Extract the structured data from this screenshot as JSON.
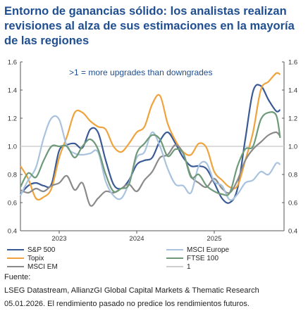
{
  "title": "Entorno de ganancias sólido: los analistas realizan revisiones al alza de sus estimaciones en la mayoría de las regiones",
  "annotation": ">1 = more upgrades than downgrades",
  "footer": {
    "line1": "Fuente:",
    "line2": "LSEG Datastream, AllianzGI Global Capital Markets & Thematic Research",
    "line3": "05.01.2026. El rendimiento pasado no predice los rendimientos futuros."
  },
  "chart_data": {
    "type": "line",
    "title": "",
    "xlabel": "",
    "ylabel": "",
    "ylim": [
      0.4,
      1.6
    ],
    "y_ticks": [
      "0.4",
      "0.6",
      "0.8",
      "1.0",
      "1.2",
      "1.4",
      "1.6"
    ],
    "y_ticks_right": [
      "0.4",
      "0.6",
      "0.8",
      "1.0",
      "1.2",
      "1.4",
      "1.6"
    ],
    "x_tick_labels": [
      "2023",
      "2024",
      "2025"
    ],
    "x_tick_positions": [
      2023.0,
      2024.0,
      2025.0
    ],
    "xlim": [
      2022.5,
      2025.9
    ],
    "grid": false,
    "legend_placement": "bottom",
    "series": [
      {
        "name": "S&P 500",
        "color": "#3a5a95",
        "x": [
          2022.5,
          2022.6,
          2022.7,
          2022.8,
          2022.9,
          2023.0,
          2023.1,
          2023.2,
          2023.3,
          2023.4,
          2023.5,
          2023.6,
          2023.7,
          2023.8,
          2023.9,
          2024.0,
          2024.1,
          2024.2,
          2024.3,
          2024.4,
          2024.5,
          2024.6,
          2024.7,
          2024.8,
          2024.9,
          2025.0,
          2025.1,
          2025.2,
          2025.3,
          2025.4,
          2025.5,
          2025.6,
          2025.7,
          2025.8,
          2025.85
        ],
        "values": [
          0.66,
          0.72,
          0.74,
          0.72,
          0.73,
          0.97,
          1.01,
          1.02,
          0.99,
          1.12,
          1.1,
          0.9,
          0.73,
          0.7,
          0.76,
          0.87,
          0.9,
          0.92,
          1.04,
          1.1,
          1.02,
          0.92,
          0.86,
          0.86,
          0.84,
          0.74,
          0.63,
          0.6,
          0.7,
          1.05,
          1.39,
          1.43,
          1.33,
          1.25,
          1.26
        ]
      },
      {
        "name": "Topix",
        "color": "#f0a33c",
        "x": [
          2022.5,
          2022.6,
          2022.7,
          2022.8,
          2022.9,
          2023.0,
          2023.1,
          2023.2,
          2023.3,
          2023.4,
          2023.5,
          2023.6,
          2023.7,
          2023.8,
          2023.9,
          2024.0,
          2024.1,
          2024.2,
          2024.3,
          2024.4,
          2024.5,
          2024.6,
          2024.7,
          2024.8,
          2024.9,
          2025.0,
          2025.1,
          2025.2,
          2025.3,
          2025.4,
          2025.5,
          2025.6,
          2025.7,
          2025.8,
          2025.85
        ],
        "values": [
          0.86,
          0.77,
          0.63,
          0.64,
          0.7,
          0.92,
          1.07,
          1.24,
          1.24,
          1.18,
          1.14,
          1.12,
          1.0,
          0.96,
          1.02,
          1.1,
          1.14,
          1.3,
          1.36,
          1.16,
          1.04,
          0.96,
          0.94,
          1.02,
          0.99,
          0.82,
          0.76,
          0.71,
          0.72,
          0.9,
          1.1,
          1.4,
          1.46,
          1.52,
          1.51
        ]
      },
      {
        "name": "MSCI EM",
        "color": "#8a8a8a",
        "x": [
          2022.5,
          2022.6,
          2022.7,
          2022.8,
          2022.9,
          2023.0,
          2023.1,
          2023.2,
          2023.3,
          2023.4,
          2023.5,
          2023.6,
          2023.7,
          2023.8,
          2023.9,
          2024.0,
          2024.1,
          2024.2,
          2024.3,
          2024.4,
          2024.5,
          2024.6,
          2024.7,
          2024.8,
          2024.9,
          2025.0,
          2025.1,
          2025.2,
          2025.3,
          2025.4,
          2025.5,
          2025.6,
          2025.7,
          2025.8,
          2025.85
        ],
        "values": [
          0.69,
          0.67,
          0.7,
          0.68,
          0.72,
          0.74,
          0.79,
          0.69,
          0.74,
          0.58,
          0.63,
          0.68,
          0.67,
          0.7,
          0.73,
          0.68,
          0.76,
          0.82,
          0.92,
          0.94,
          1.01,
          0.95,
          0.79,
          0.74,
          0.71,
          0.77,
          0.7,
          0.67,
          0.76,
          0.9,
          0.98,
          1.03,
          1.08,
          1.1,
          1.07
        ]
      },
      {
        "name": "MSCI Europe",
        "color": "#a9c3df",
        "x": [
          2022.5,
          2022.6,
          2022.7,
          2022.8,
          2022.9,
          2023.0,
          2023.1,
          2023.2,
          2023.3,
          2023.4,
          2023.5,
          2023.6,
          2023.7,
          2023.8,
          2023.9,
          2024.0,
          2024.1,
          2024.2,
          2024.3,
          2024.4,
          2024.5,
          2024.6,
          2024.7,
          2024.8,
          2024.9,
          2025.0,
          2025.1,
          2025.2,
          2025.3,
          2025.4,
          2025.5,
          2025.6,
          2025.7,
          2025.8,
          2025.85
        ],
        "values": [
          0.65,
          0.76,
          0.85,
          1.06,
          1.2,
          1.19,
          1.0,
          0.95,
          0.94,
          0.95,
          0.96,
          0.75,
          0.65,
          0.63,
          0.74,
          0.92,
          0.96,
          1.1,
          1.0,
          0.84,
          0.73,
          0.72,
          0.67,
          0.86,
          0.88,
          0.75,
          0.72,
          0.62,
          0.66,
          0.74,
          0.76,
          0.82,
          0.8,
          0.88,
          0.87
        ]
      },
      {
        "name": "FTSE 100",
        "color": "#6e9a7a",
        "x": [
          2022.5,
          2022.6,
          2022.7,
          2022.8,
          2022.9,
          2023.0,
          2023.1,
          2023.2,
          2023.3,
          2023.4,
          2023.5,
          2023.6,
          2023.7,
          2023.8,
          2023.9,
          2024.0,
          2024.1,
          2024.2,
          2024.3,
          2024.4,
          2024.5,
          2024.6,
          2024.7,
          2024.8,
          2024.9,
          2025.0,
          2025.1,
          2025.2,
          2025.3,
          2025.4,
          2025.5,
          2025.6,
          2025.7,
          2025.8,
          2025.85
        ],
        "values": [
          0.71,
          0.81,
          0.78,
          0.9,
          1.0,
          1.0,
          1.0,
          0.92,
          1.0,
          1.05,
          0.98,
          0.8,
          0.68,
          0.7,
          0.73,
          0.95,
          1.02,
          1.08,
          1.05,
          0.93,
          0.98,
          0.95,
          0.78,
          0.8,
          0.72,
          0.68,
          0.66,
          0.67,
          0.86,
          0.98,
          1.0,
          1.19,
          1.24,
          1.22,
          1.06
        ]
      },
      {
        "name": "1",
        "color": "#cfcfcf",
        "x": [
          2022.5,
          2025.9
        ],
        "values": [
          1.0,
          1.0
        ]
      }
    ]
  },
  "legend": [
    {
      "label": "S&P 500",
      "color": "#3a5a95"
    },
    {
      "label": "Topix",
      "color": "#f0a33c"
    },
    {
      "label": "MSCI EM",
      "color": "#8a8a8a"
    },
    {
      "label": "MSCI Europe",
      "color": "#a9c3df"
    },
    {
      "label": "FTSE 100",
      "color": "#6e9a7a"
    },
    {
      "label": "1",
      "color": "#cfcfcf"
    }
  ]
}
